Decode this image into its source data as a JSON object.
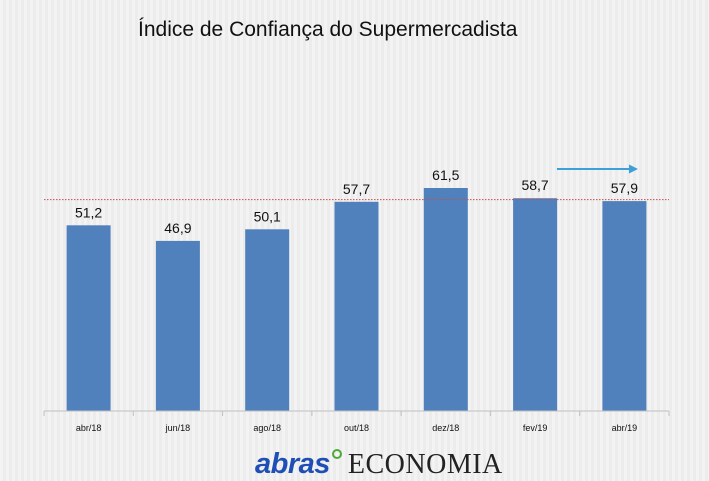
{
  "title": "Índice de Confiança do Supermercadista",
  "chart_data": {
    "type": "bar",
    "title": "Índice de Confiança do Supermercadista",
    "categories": [
      "abr/18",
      "jun/18",
      "ago/18",
      "out/18",
      "dez/18",
      "fev/19",
      "abr/19"
    ],
    "values": [
      51.2,
      46.9,
      50.1,
      57.7,
      61.5,
      58.7,
      57.9
    ],
    "value_labels": [
      "51,2",
      "46,9",
      "50,1",
      "57,7",
      "61,5",
      "58,7",
      "57,9"
    ],
    "reference_line": 58.3,
    "ylim": [
      0,
      70
    ],
    "grid": false,
    "colors": {
      "bar": "#5081bd",
      "reference_line": "#c0504d",
      "arrow": "#3f9fd8"
    }
  },
  "footer": {
    "brand": "abras",
    "section": "ECONOMIA"
  }
}
